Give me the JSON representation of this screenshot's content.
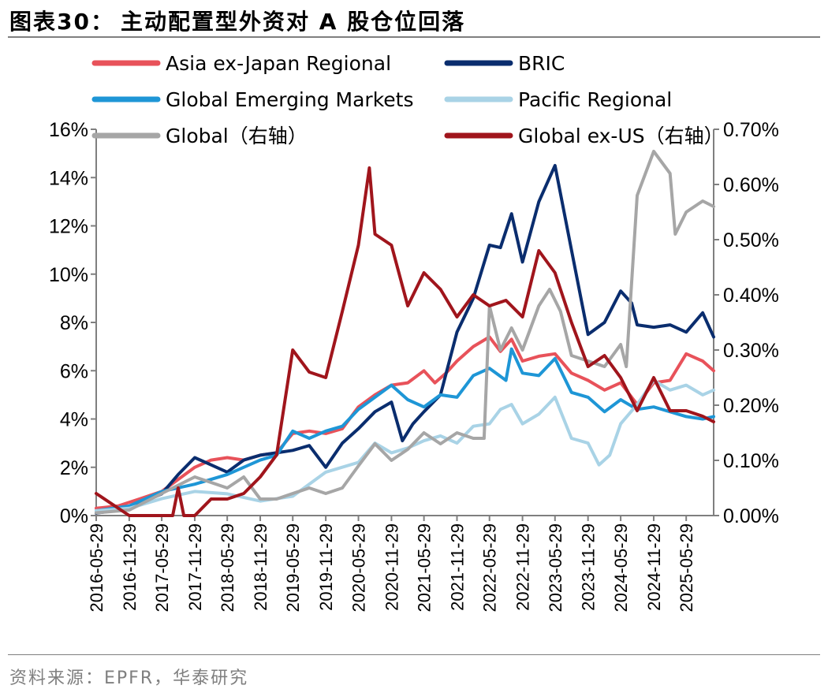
{
  "header": {
    "figure_label": "图表30：",
    "title": "主动配置型外资对 A 股仓位回落"
  },
  "source": "资料来源：EPFR，华泰研究",
  "colors": {
    "asia_ex_japan": "#e8525a",
    "bric": "#0a2d6e",
    "global_emerging": "#1e96d6",
    "pacific": "#a9d3e6",
    "global": "#a6a6a6",
    "global_ex_us": "#a0151c",
    "axis": "#7f7f7f"
  },
  "chart_data": {
    "type": "line",
    "x_tick_labels": [
      "2016-05-29",
      "2016-11-29",
      "2017-05-29",
      "2017-11-29",
      "2018-05-29",
      "2018-11-29",
      "2019-05-29",
      "2019-11-29",
      "2020-05-29",
      "2020-11-29",
      "2021-05-29",
      "2021-11-29",
      "2022-05-29",
      "2022-11-29",
      "2023-05-29",
      "2023-11-29",
      "2024-05-29",
      "2024-11-29",
      "2025-05-29"
    ],
    "x_range": [
      "2016-05-29",
      "2025-10-29"
    ],
    "left_axis": {
      "ylim": [
        0,
        16
      ],
      "ticks": [
        "0%",
        "2%",
        "4%",
        "6%",
        "8%",
        "10%",
        "12%",
        "14%",
        "16%"
      ]
    },
    "right_axis": {
      "ylim": [
        0,
        0.7
      ],
      "ticks": [
        "0.00%",
        "0.10%",
        "0.20%",
        "0.30%",
        "0.40%",
        "0.50%",
        "0.60%",
        "0.70%"
      ]
    },
    "legend_position": "top",
    "series": [
      {
        "name": "Asia ex-Japan Regional",
        "axis": "left",
        "color_key": "asia_ex_japan",
        "points": [
          [
            "2016-05-29",
            0.3
          ],
          [
            "2016-09-29",
            0.4
          ],
          [
            "2017-01-29",
            0.7
          ],
          [
            "2017-05-29",
            1.0
          ],
          [
            "2017-08-29",
            1.5
          ],
          [
            "2017-11-29",
            2.0
          ],
          [
            "2018-02-28",
            2.3
          ],
          [
            "2018-05-29",
            2.4
          ],
          [
            "2018-08-29",
            2.3
          ],
          [
            "2018-11-29",
            2.5
          ],
          [
            "2019-02-28",
            2.6
          ],
          [
            "2019-05-29",
            3.4
          ],
          [
            "2019-08-29",
            3.5
          ],
          [
            "2019-11-29",
            3.4
          ],
          [
            "2020-02-29",
            3.6
          ],
          [
            "2020-05-29",
            4.5
          ],
          [
            "2020-08-29",
            5.0
          ],
          [
            "2020-11-29",
            5.4
          ],
          [
            "2021-02-28",
            5.5
          ],
          [
            "2021-05-29",
            6.0
          ],
          [
            "2021-07-29",
            5.5
          ],
          [
            "2021-09-29",
            5.9
          ],
          [
            "2021-11-29",
            6.4
          ],
          [
            "2022-02-28",
            7.0
          ],
          [
            "2022-05-29",
            7.4
          ],
          [
            "2022-07-29",
            6.8
          ],
          [
            "2022-09-29",
            7.3
          ],
          [
            "2022-11-29",
            6.4
          ],
          [
            "2023-02-28",
            6.6
          ],
          [
            "2023-05-29",
            6.7
          ],
          [
            "2023-08-29",
            5.9
          ],
          [
            "2023-11-29",
            5.6
          ],
          [
            "2024-02-29",
            5.2
          ],
          [
            "2024-05-29",
            5.5
          ],
          [
            "2024-08-29",
            4.6
          ],
          [
            "2024-11-29",
            5.5
          ],
          [
            "2025-02-28",
            5.6
          ],
          [
            "2025-05-29",
            6.7
          ],
          [
            "2025-08-29",
            6.4
          ],
          [
            "2025-10-29",
            6.0
          ]
        ]
      },
      {
        "name": "BRIC",
        "axis": "left",
        "color_key": "bric",
        "points": [
          [
            "2016-05-29",
            0.1
          ],
          [
            "2016-11-29",
            0.3
          ],
          [
            "2017-05-29",
            0.9
          ],
          [
            "2017-08-29",
            1.7
          ],
          [
            "2017-11-29",
            2.4
          ],
          [
            "2018-02-28",
            2.1
          ],
          [
            "2018-05-29",
            1.8
          ],
          [
            "2018-08-29",
            2.3
          ],
          [
            "2018-11-29",
            2.5
          ],
          [
            "2019-02-28",
            2.6
          ],
          [
            "2019-05-29",
            2.7
          ],
          [
            "2019-08-29",
            2.9
          ],
          [
            "2019-11-29",
            2.0
          ],
          [
            "2020-02-29",
            3.0
          ],
          [
            "2020-05-29",
            3.6
          ],
          [
            "2020-08-29",
            4.3
          ],
          [
            "2020-11-29",
            4.7
          ],
          [
            "2021-01-29",
            3.1
          ],
          [
            "2021-03-29",
            3.8
          ],
          [
            "2021-05-29",
            4.3
          ],
          [
            "2021-08-29",
            5.0
          ],
          [
            "2021-11-29",
            7.6
          ],
          [
            "2022-02-28",
            9.0
          ],
          [
            "2022-05-29",
            11.2
          ],
          [
            "2022-07-29",
            11.1
          ],
          [
            "2022-09-29",
            12.5
          ],
          [
            "2022-11-29",
            10.5
          ],
          [
            "2023-02-28",
            13.0
          ],
          [
            "2023-05-29",
            14.5
          ],
          [
            "2023-08-29",
            11.0
          ],
          [
            "2023-11-29",
            7.5
          ],
          [
            "2024-02-29",
            8.0
          ],
          [
            "2024-05-29",
            9.3
          ],
          [
            "2024-07-29",
            8.8
          ],
          [
            "2024-08-29",
            7.9
          ],
          [
            "2024-11-29",
            7.8
          ],
          [
            "2025-02-28",
            7.9
          ],
          [
            "2025-05-29",
            7.6
          ],
          [
            "2025-08-29",
            8.4
          ],
          [
            "2025-10-29",
            7.4
          ]
        ]
      },
      {
        "name": "Global Emerging Markets",
        "axis": "left",
        "color_key": "global_emerging",
        "points": [
          [
            "2016-05-29",
            0.2
          ],
          [
            "2016-11-29",
            0.4
          ],
          [
            "2017-05-29",
            1.0
          ],
          [
            "2017-11-29",
            1.3
          ],
          [
            "2018-05-29",
            1.7
          ],
          [
            "2018-11-29",
            2.3
          ],
          [
            "2019-02-28",
            2.5
          ],
          [
            "2019-05-29",
            3.5
          ],
          [
            "2019-08-29",
            3.2
          ],
          [
            "2019-11-29",
            3.5
          ],
          [
            "2020-02-29",
            3.7
          ],
          [
            "2020-05-29",
            4.4
          ],
          [
            "2020-08-29",
            4.9
          ],
          [
            "2020-11-29",
            5.4
          ],
          [
            "2021-02-28",
            4.8
          ],
          [
            "2021-05-29",
            4.5
          ],
          [
            "2021-08-29",
            5.0
          ],
          [
            "2021-11-29",
            4.9
          ],
          [
            "2022-02-28",
            5.8
          ],
          [
            "2022-05-29",
            6.1
          ],
          [
            "2022-08-29",
            5.6
          ],
          [
            "2022-09-29",
            6.9
          ],
          [
            "2022-11-29",
            5.9
          ],
          [
            "2023-02-28",
            5.8
          ],
          [
            "2023-05-29",
            6.5
          ],
          [
            "2023-08-29",
            5.1
          ],
          [
            "2023-11-29",
            4.9
          ],
          [
            "2024-02-29",
            4.3
          ],
          [
            "2024-05-29",
            4.8
          ],
          [
            "2024-08-29",
            4.4
          ],
          [
            "2024-11-29",
            4.5
          ],
          [
            "2025-02-28",
            4.3
          ],
          [
            "2025-05-29",
            4.1
          ],
          [
            "2025-08-29",
            4.0
          ],
          [
            "2025-10-29",
            4.1
          ]
        ]
      },
      {
        "name": "Pacific Regional",
        "axis": "left",
        "color_key": "pacific",
        "points": [
          [
            "2016-05-29",
            0.2
          ],
          [
            "2016-11-29",
            0.3
          ],
          [
            "2017-05-29",
            0.7
          ],
          [
            "2017-11-29",
            1.0
          ],
          [
            "2018-05-29",
            0.9
          ],
          [
            "2018-11-29",
            0.6
          ],
          [
            "2019-05-29",
            0.8
          ],
          [
            "2019-11-29",
            1.8
          ],
          [
            "2020-05-29",
            2.2
          ],
          [
            "2020-08-29",
            3.0
          ],
          [
            "2020-11-29",
            2.6
          ],
          [
            "2021-02-28",
            2.8
          ],
          [
            "2021-05-29",
            3.1
          ],
          [
            "2021-08-29",
            3.3
          ],
          [
            "2021-11-29",
            3.0
          ],
          [
            "2022-02-28",
            3.7
          ],
          [
            "2022-05-29",
            3.8
          ],
          [
            "2022-07-29",
            4.4
          ],
          [
            "2022-09-29",
            4.6
          ],
          [
            "2022-11-29",
            3.8
          ],
          [
            "2023-02-28",
            4.2
          ],
          [
            "2023-05-29",
            4.9
          ],
          [
            "2023-08-29",
            3.2
          ],
          [
            "2023-11-29",
            3.0
          ],
          [
            "2024-01-29",
            2.1
          ],
          [
            "2024-03-29",
            2.5
          ],
          [
            "2024-05-29",
            3.8
          ],
          [
            "2024-08-29",
            4.6
          ],
          [
            "2024-11-29",
            5.6
          ],
          [
            "2025-02-28",
            5.2
          ],
          [
            "2025-05-29",
            5.4
          ],
          [
            "2025-08-29",
            5.0
          ],
          [
            "2025-10-29",
            5.2
          ]
        ]
      },
      {
        "name": "Global（右轴）",
        "axis": "right",
        "color_key": "global",
        "points": [
          [
            "2016-05-29",
            0.005
          ],
          [
            "2016-11-29",
            0.01
          ],
          [
            "2017-05-29",
            0.04
          ],
          [
            "2017-11-29",
            0.07
          ],
          [
            "2018-05-29",
            0.05
          ],
          [
            "2018-08-29",
            0.07
          ],
          [
            "2018-11-29",
            0.03
          ],
          [
            "2019-02-28",
            0.03
          ],
          [
            "2019-05-29",
            0.04
          ],
          [
            "2019-08-29",
            0.05
          ],
          [
            "2019-11-29",
            0.04
          ],
          [
            "2020-02-29",
            0.05
          ],
          [
            "2020-05-29",
            0.09
          ],
          [
            "2020-08-29",
            0.13
          ],
          [
            "2020-11-29",
            0.1
          ],
          [
            "2021-02-28",
            0.12
          ],
          [
            "2021-05-29",
            0.15
          ],
          [
            "2021-08-29",
            0.13
          ],
          [
            "2021-11-29",
            0.15
          ],
          [
            "2022-02-28",
            0.14
          ],
          [
            "2022-04-29",
            0.14
          ],
          [
            "2022-05-29",
            0.38
          ],
          [
            "2022-07-29",
            0.3
          ],
          [
            "2022-09-29",
            0.34
          ],
          [
            "2022-11-29",
            0.3
          ],
          [
            "2023-02-28",
            0.38
          ],
          [
            "2023-04-29",
            0.41
          ],
          [
            "2023-06-29",
            0.37
          ],
          [
            "2023-08-29",
            0.29
          ],
          [
            "2023-11-29",
            0.28
          ],
          [
            "2024-02-29",
            0.27
          ],
          [
            "2024-05-29",
            0.31
          ],
          [
            "2024-06-29",
            0.27
          ],
          [
            "2024-08-29",
            0.58
          ],
          [
            "2024-11-29",
            0.66
          ],
          [
            "2025-02-28",
            0.62
          ],
          [
            "2025-03-29",
            0.51
          ],
          [
            "2025-05-29",
            0.55
          ],
          [
            "2025-08-29",
            0.57
          ],
          [
            "2025-10-29",
            0.56
          ]
        ]
      },
      {
        "name": "Global ex-US（右轴）",
        "axis": "right",
        "color_key": "global_ex_us",
        "points": [
          [
            "2016-05-29",
            0.04
          ],
          [
            "2016-11-29",
            0.0
          ],
          [
            "2017-05-29",
            0.0
          ],
          [
            "2017-07-29",
            0.0
          ],
          [
            "2017-08-29",
            0.05
          ],
          [
            "2017-09-29",
            0.0
          ],
          [
            "2017-11-29",
            0.0
          ],
          [
            "2018-02-28",
            0.03
          ],
          [
            "2018-05-29",
            0.03
          ],
          [
            "2018-08-29",
            0.04
          ],
          [
            "2018-11-29",
            0.07
          ],
          [
            "2019-02-28",
            0.11
          ],
          [
            "2019-05-29",
            0.3
          ],
          [
            "2019-08-29",
            0.26
          ],
          [
            "2019-11-29",
            0.25
          ],
          [
            "2020-02-29",
            0.37
          ],
          [
            "2020-05-29",
            0.49
          ],
          [
            "2020-07-29",
            0.63
          ],
          [
            "2020-08-29",
            0.51
          ],
          [
            "2020-11-29",
            0.49
          ],
          [
            "2021-02-28",
            0.38
          ],
          [
            "2021-05-29",
            0.44
          ],
          [
            "2021-08-29",
            0.41
          ],
          [
            "2021-11-29",
            0.36
          ],
          [
            "2022-02-28",
            0.4
          ],
          [
            "2022-05-29",
            0.38
          ],
          [
            "2022-08-29",
            0.39
          ],
          [
            "2022-11-29",
            0.36
          ],
          [
            "2023-02-28",
            0.48
          ],
          [
            "2023-05-29",
            0.44
          ],
          [
            "2023-08-29",
            0.35
          ],
          [
            "2023-11-29",
            0.27
          ],
          [
            "2024-02-29",
            0.29
          ],
          [
            "2024-05-29",
            0.25
          ],
          [
            "2024-08-29",
            0.19
          ],
          [
            "2024-11-29",
            0.25
          ],
          [
            "2025-02-28",
            0.19
          ],
          [
            "2025-05-29",
            0.19
          ],
          [
            "2025-08-29",
            0.18
          ],
          [
            "2025-10-29",
            0.17
          ]
        ]
      }
    ]
  }
}
